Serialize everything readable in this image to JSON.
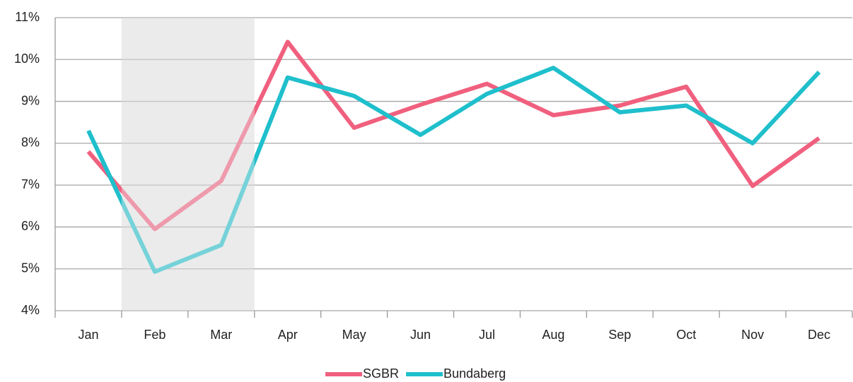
{
  "chart_data": {
    "type": "line",
    "categories": [
      "Jan",
      "Feb",
      "Mar",
      "Apr",
      "May",
      "Jun",
      "Jul",
      "Aug",
      "Sep",
      "Oct",
      "Nov",
      "Dec"
    ],
    "series": [
      {
        "name": "SGBR",
        "color": "#f0607e",
        "values": [
          7.8,
          5.95,
          7.1,
          10.42,
          8.37,
          8.92,
          9.42,
          8.67,
          8.9,
          9.35,
          6.98,
          8.12
        ]
      },
      {
        "name": "Bundaberg",
        "color": "#1fbfcc",
        "values": [
          8.3,
          4.93,
          5.57,
          9.57,
          9.13,
          8.2,
          9.18,
          9.8,
          8.74,
          8.9,
          8.0,
          9.7
        ]
      }
    ],
    "ylim": [
      4,
      11
    ],
    "yticks": [
      {
        "value": 4,
        "label": "4%"
      },
      {
        "value": 5,
        "label": "5%"
      },
      {
        "value": 6,
        "label": "6%"
      },
      {
        "value": 7,
        "label": "7%"
      },
      {
        "value": 8,
        "label": "8%"
      },
      {
        "value": 9,
        "label": "9%"
      },
      {
        "value": 10,
        "label": "10%"
      },
      {
        "value": 11,
        "label": "11%"
      }
    ],
    "grid": true,
    "highlight_range": [
      1,
      2
    ],
    "legend": "bottom"
  }
}
